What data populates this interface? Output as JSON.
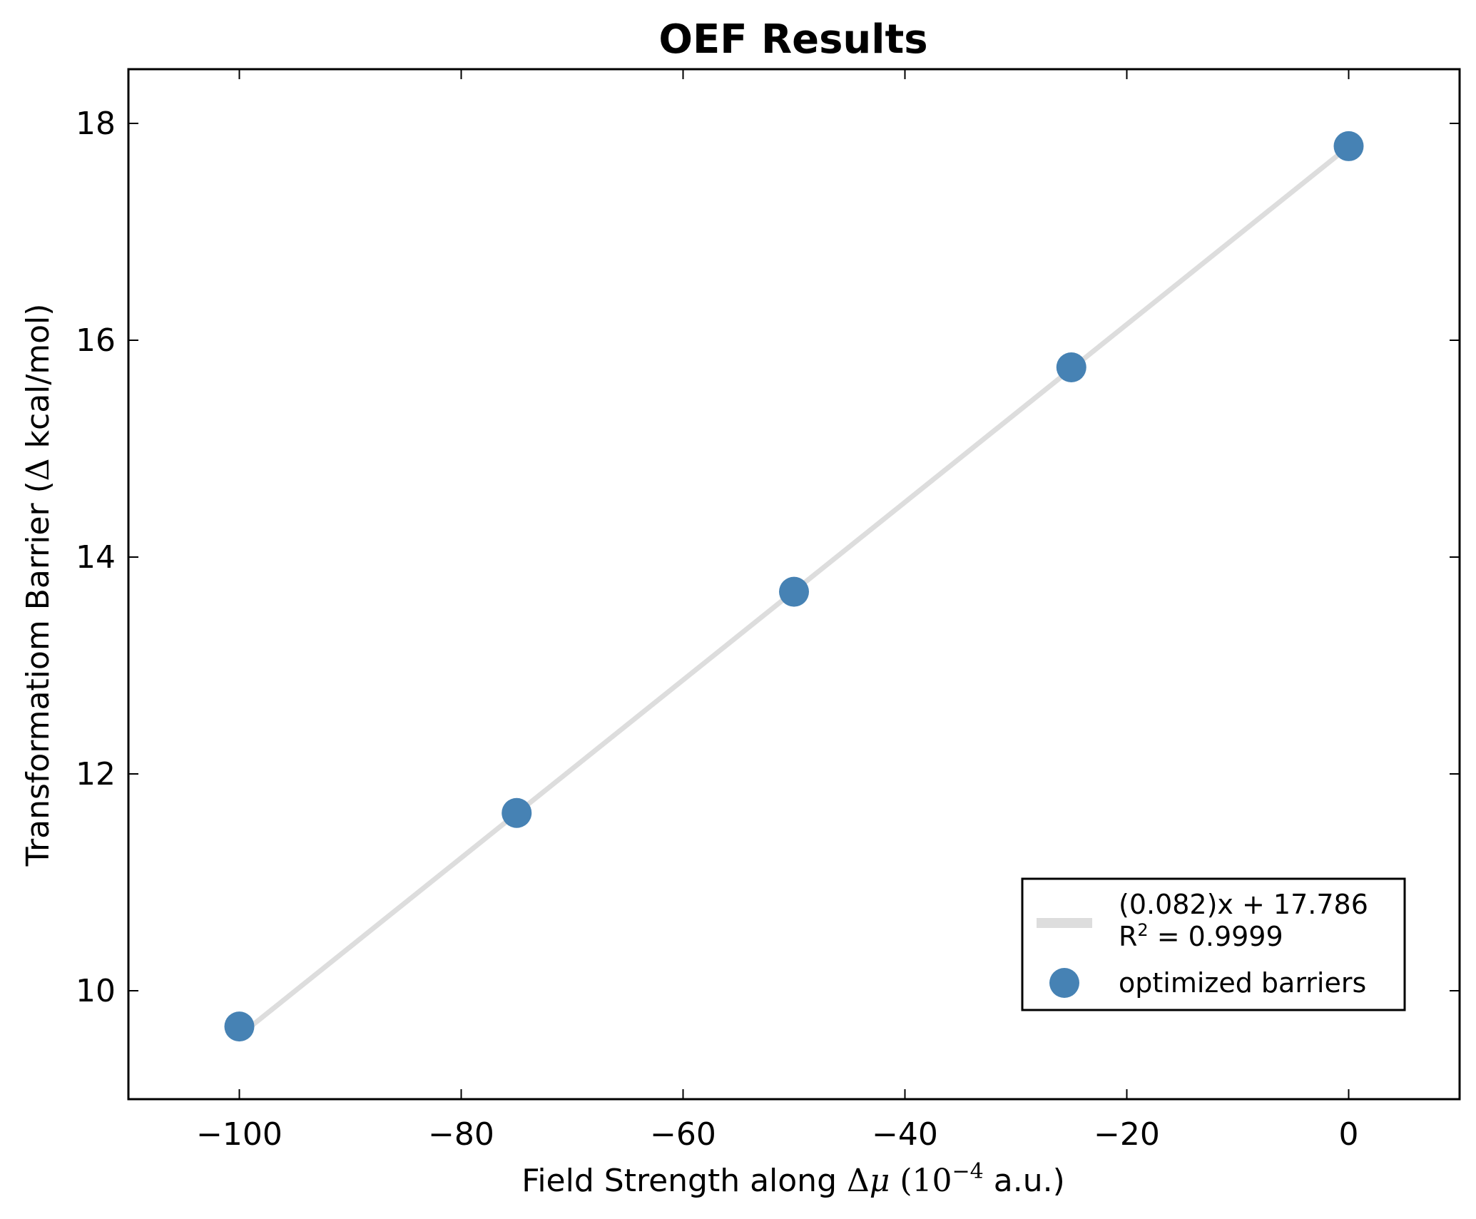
{
  "chart_data": {
    "type": "scatter",
    "title": "OEF Results",
    "xlabel": {
      "prefix": "Field Strength along ",
      "math_delta": "Δ",
      "math_mu": "μ",
      "paren_open": " (",
      "math_base": "10",
      "math_exp": "−4",
      "suffix": " a.u.)"
    },
    "ylabel": {
      "prefix": "Transformatiom Barrier (",
      "math_delta": "Δ",
      "suffix": " kcal/mol)"
    },
    "xlim": [
      -110,
      10
    ],
    "ylim": [
      9,
      18.5
    ],
    "xticks": [
      -100,
      -80,
      -60,
      -40,
      -20,
      0
    ],
    "xtick_labels": [
      "−100",
      "−80",
      "−60",
      "−40",
      "−20",
      "0"
    ],
    "yticks": [
      10,
      12,
      14,
      16,
      18
    ],
    "ytick_labels": [
      "10",
      "12",
      "14",
      "16",
      "18"
    ],
    "grid": false,
    "legend_position": "lower-right",
    "series": [
      {
        "kind": "line",
        "label_line1": "(0.082)x + 17.786",
        "label_line2_prefix": "R",
        "label_line2_sup": "2",
        "label_line2_suffix": " = 0.9999",
        "slope": 0.082,
        "intercept": 17.786,
        "x_range": [
          -100,
          0
        ],
        "color": "#dddddd"
      },
      {
        "kind": "scatter",
        "name": "optimized barriers",
        "x": [
          -100,
          -75,
          -50,
          -25,
          0
        ],
        "y": [
          9.67,
          11.64,
          13.68,
          15.75,
          17.79
        ],
        "color": "#4682b4"
      }
    ]
  }
}
